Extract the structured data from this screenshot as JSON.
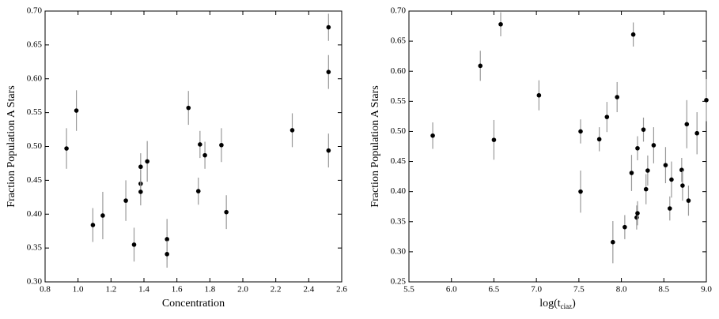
{
  "chart_data": [
    {
      "type": "scatter",
      "xlabel": "Concentration",
      "ylabel": "Fraction Population A Stars",
      "xlim": [
        0.8,
        2.6
      ],
      "ylim": [
        0.3,
        0.7
      ],
      "xticks": [
        0.8,
        {
          "value": 1.0,
          "label": "1.0"
        },
        1.2,
        1.4,
        1.6,
        1.8,
        {
          "value": 2.0,
          "label": "2.0"
        },
        2.2,
        2.4,
        2.6
      ],
      "yticks": [
        {
          "value": 0.3,
          "label": "0.30"
        },
        0.35,
        {
          "value": 0.4,
          "label": "0.40"
        },
        0.45,
        {
          "value": 0.5,
          "label": "0.50"
        },
        0.55,
        {
          "value": 0.6,
          "label": "0.60"
        },
        0.65,
        {
          "value": 0.7,
          "label": "0.70"
        }
      ],
      "color": "#000000",
      "error_color": "#999999",
      "x": [
        0.93,
        0.99,
        1.09,
        1.15,
        1.29,
        1.34,
        1.38,
        1.38,
        1.38,
        1.42,
        1.54,
        1.54,
        1.67,
        1.73,
        1.74,
        1.77,
        1.87,
        1.9,
        2.3,
        2.52,
        2.52,
        2.52
      ],
      "values": [
        0.497,
        0.553,
        0.384,
        0.398,
        0.42,
        0.355,
        0.47,
        0.445,
        0.433,
        0.478,
        0.363,
        0.341,
        0.557,
        0.434,
        0.503,
        0.487,
        0.502,
        0.403,
        0.524,
        0.676,
        0.61,
        0.494
      ],
      "errors": [
        0.03,
        0.03,
        0.025,
        0.035,
        0.03,
        0.025,
        0.02,
        0.02,
        0.02,
        0.03,
        0.03,
        0.02,
        0.025,
        0.02,
        0.02,
        0.02,
        0.025,
        0.025,
        0.025,
        0.02,
        0.025,
        0.025
      ]
    },
    {
      "type": "scatter",
      "xlabel_main": "log(t",
      "xlabel_sub": "ciaz",
      "xlabel_end": ")",
      "ylabel": "Fraction Population A Stars",
      "xlim": [
        5.5,
        9.0
      ],
      "ylim": [
        0.25,
        0.7
      ],
      "xticks": [
        5.5,
        {
          "value": 6.0,
          "label": "6.0"
        },
        6.5,
        {
          "value": 7.0,
          "label": "7.0"
        },
        7.5,
        {
          "value": 8.0,
          "label": "8.0"
        },
        8.5,
        {
          "value": 9.0,
          "label": "9.0"
        }
      ],
      "yticks": [
        0.25,
        {
          "value": 0.3,
          "label": "0.30"
        },
        0.35,
        {
          "value": 0.4,
          "label": "0.40"
        },
        0.45,
        {
          "value": 0.5,
          "label": "0.50"
        },
        0.55,
        {
          "value": 0.6,
          "label": "0.60"
        },
        0.65,
        {
          "value": 0.7,
          "label": "0.70"
        }
      ],
      "color": "#000000",
      "error_color": "#999999",
      "x": [
        5.78,
        6.34,
        6.5,
        6.58,
        7.03,
        7.52,
        7.52,
        7.74,
        7.83,
        7.9,
        7.95,
        8.04,
        8.12,
        8.14,
        8.18,
        8.19,
        8.19,
        8.26,
        8.29,
        8.31,
        8.38,
        8.52,
        8.59,
        8.57,
        8.71,
        8.72,
        8.77,
        8.79,
        8.89,
        9.0
      ],
      "values": [
        0.493,
        0.609,
        0.486,
        0.678,
        0.56,
        0.5,
        0.4,
        0.487,
        0.524,
        0.316,
        0.557,
        0.341,
        0.431,
        0.661,
        0.357,
        0.364,
        0.472,
        0.503,
        0.404,
        0.435,
        0.477,
        0.444,
        0.42,
        0.372,
        0.436,
        0.41,
        0.512,
        0.385,
        0.497,
        0.552
      ],
      "errors": [
        0.022,
        0.025,
        0.033,
        0.02,
        0.025,
        0.02,
        0.035,
        0.02,
        0.025,
        0.035,
        0.025,
        0.02,
        0.03,
        0.02,
        0.02,
        0.02,
        0.02,
        0.02,
        0.025,
        0.025,
        0.03,
        0.03,
        0.03,
        0.02,
        0.02,
        0.025,
        0.04,
        0.025,
        0.035,
        0.035
      ]
    }
  ]
}
